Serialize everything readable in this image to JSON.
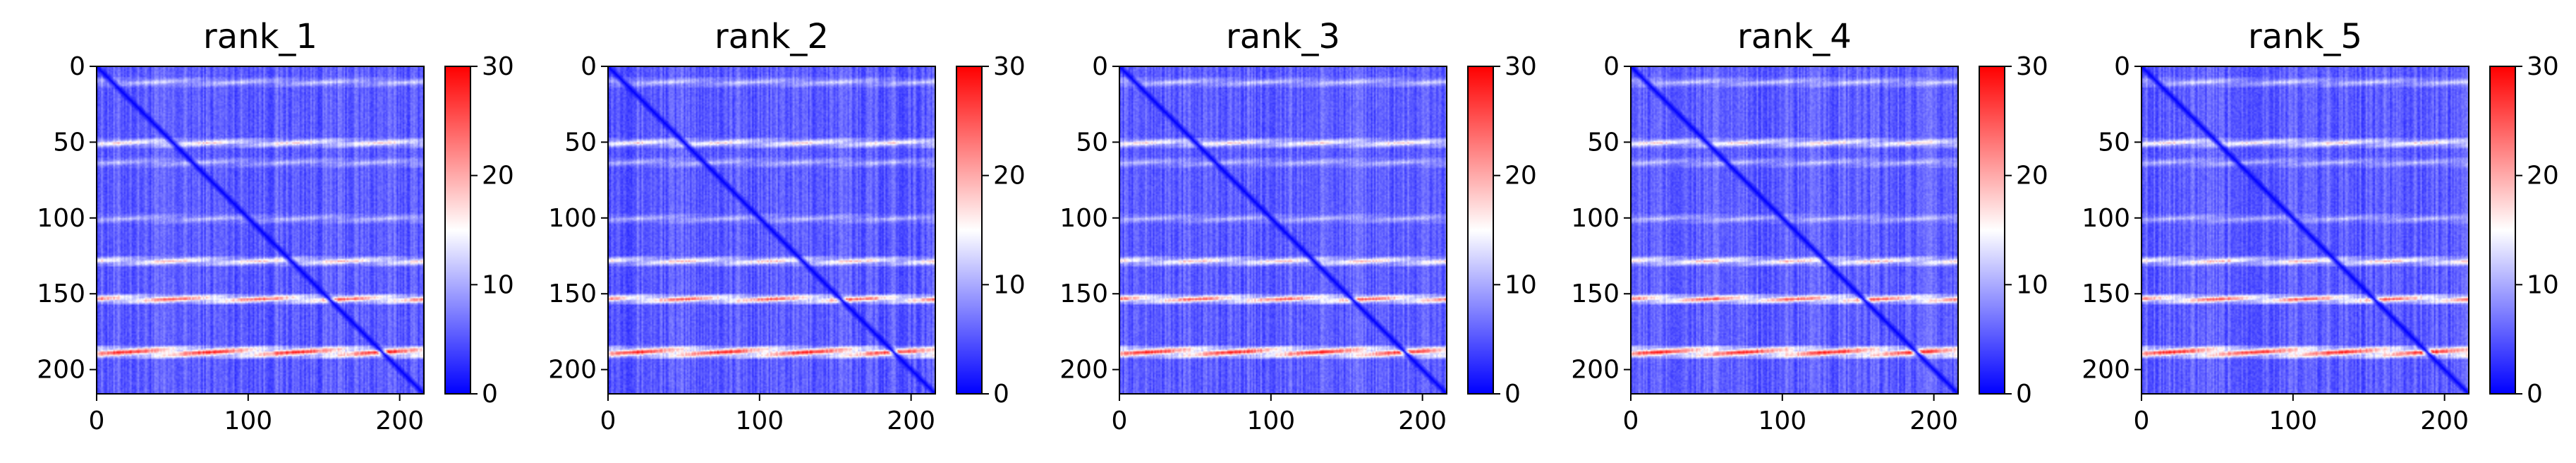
{
  "chart_data": {
    "type": "heatmap",
    "colormap": "bwr",
    "colors": {
      "low": "#0000ff",
      "mid": "#ffffff",
      "high": "#ff0000"
    },
    "matrix_size": 216,
    "xlim": [
      0,
      216
    ],
    "ylim": [
      0,
      216
    ],
    "xticks": [
      "0",
      "100",
      "200"
    ],
    "yticks": [
      "0",
      "50",
      "100",
      "150",
      "200"
    ],
    "colorbar_range": [
      0,
      30
    ],
    "colorbar_ticks": [
      "0",
      "10",
      "20",
      "30"
    ],
    "pattern": {
      "description_values_in_data_units": true,
      "background_value": 5,
      "diagonal_value": 0,
      "bright_rows": [
        {
          "row": 10,
          "value": 12,
          "width": 3
        },
        {
          "row": 50,
          "value": 17,
          "width": 3
        },
        {
          "row": 63,
          "value": 11,
          "width": 3
        },
        {
          "row": 100,
          "value": 11,
          "width": 3
        },
        {
          "row": 128,
          "value": 18,
          "width": 3
        },
        {
          "row": 153,
          "value": 24,
          "width": 3
        },
        {
          "row": 188,
          "value": 28,
          "width": 4
        }
      ]
    },
    "panels": [
      {
        "title": "rank_1"
      },
      {
        "title": "rank_2"
      },
      {
        "title": "rank_3"
      },
      {
        "title": "rank_4"
      },
      {
        "title": "rank_5"
      }
    ]
  }
}
